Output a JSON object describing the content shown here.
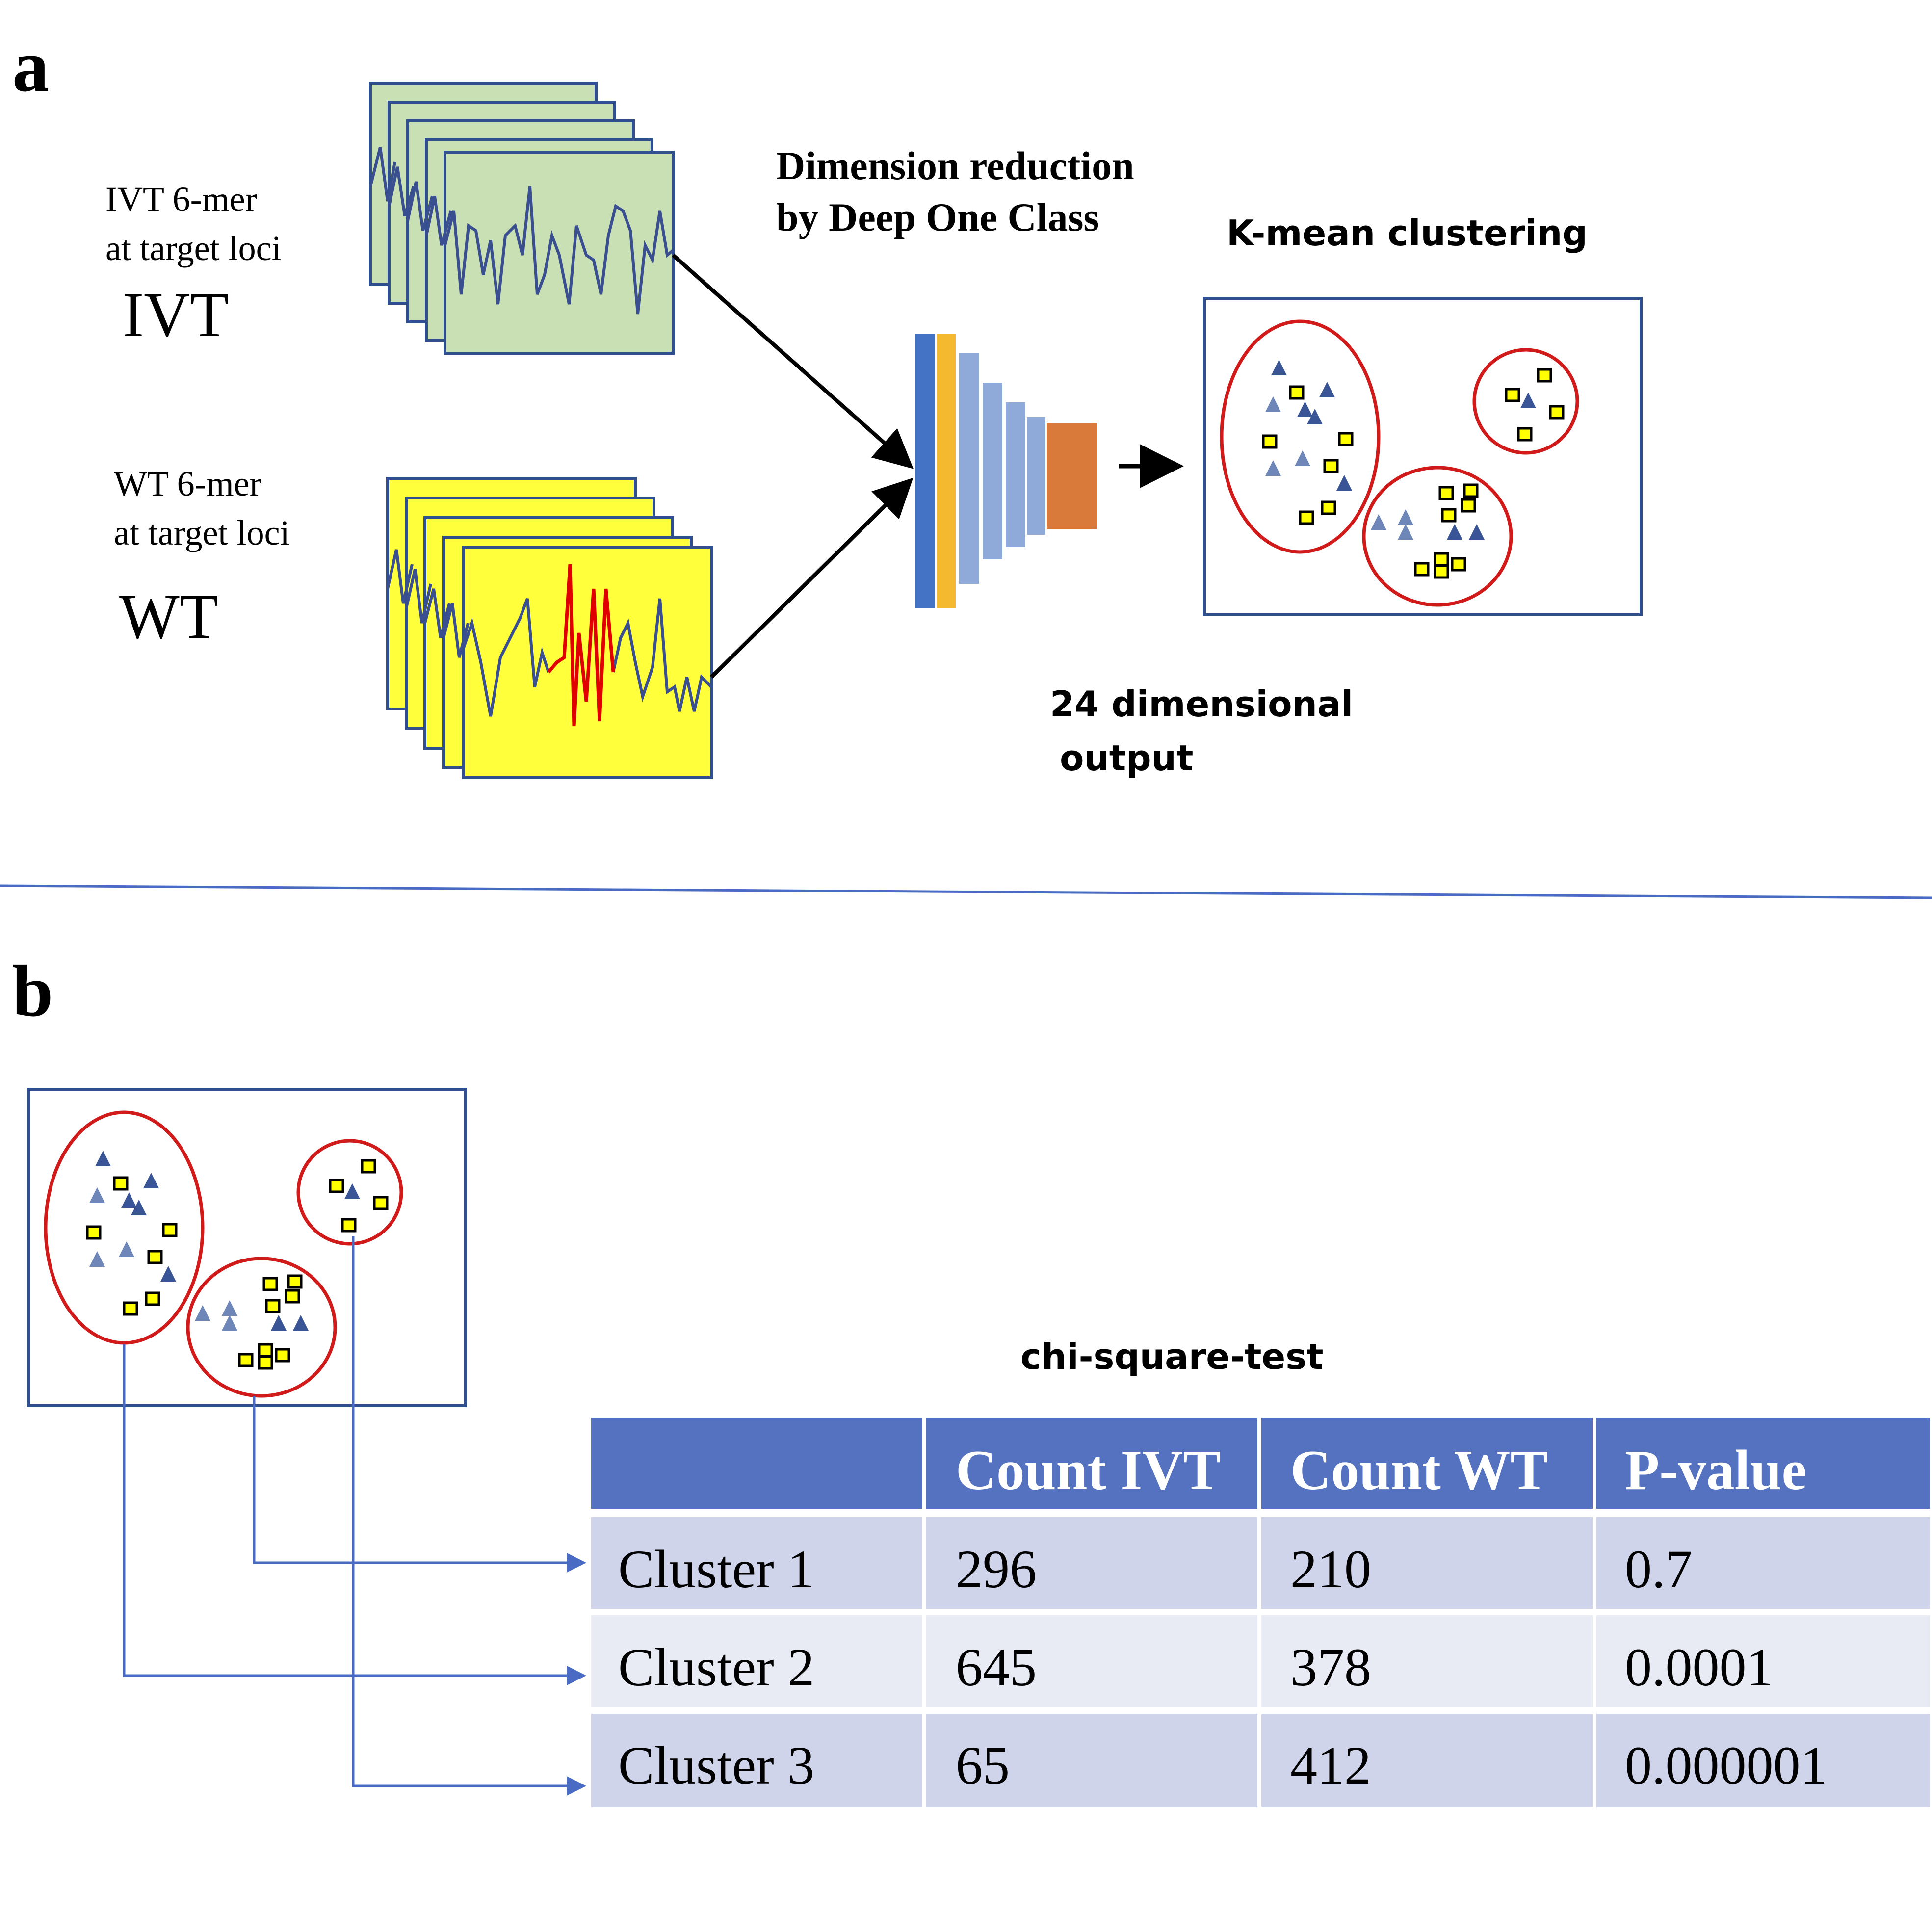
{
  "panel_a": {
    "letter": "a",
    "ivt_label_line1": "IVT 6-mer",
    "ivt_label_line2": "at target loci",
    "ivt_big": "IVT",
    "wt_label_line1": "WT 6-mer",
    "wt_label_line2": "at target loci",
    "wt_big": "WT",
    "dim_reduction_line1": "Dimension reduction",
    "dim_reduction_line2": "by Deep One Class",
    "kmeans_title": "K-mean clustering",
    "output_line1": "24 dimensional",
    "output_line2": "output",
    "colors": {
      "ivt_fill": "#c9e0b4",
      "wt_fill": "#ffff3c",
      "frame_border": "#2f4f8f",
      "signal_line": "#3a4f8f",
      "signal_highlight": "#e00000",
      "layer_blue": "#4472c4",
      "layer_yellow": "#f4b92e",
      "layer_light": "#8fa9d9",
      "layer_orange": "#d97a3a",
      "cluster_ellipse": "#d11a1a",
      "triangle": "#3a5596",
      "square": "#ffff00"
    }
  },
  "panel_b": {
    "letter": "b",
    "table_title": "chi-square-test",
    "table": {
      "headers": [
        "",
        "Count IVT",
        "Count WT",
        "P-value"
      ],
      "rows": [
        [
          "Cluster 1",
          "296",
          "210",
          "0.7"
        ],
        [
          "Cluster 2",
          "645",
          "378",
          "0.0001"
        ],
        [
          "Cluster 3",
          "65",
          "412",
          "0.000001"
        ]
      ]
    },
    "colors": {
      "header_bg": "#5472c0",
      "row_dark": "#cfd4ea",
      "row_light": "#e8eaf4",
      "connector": "#4a6bc4"
    }
  }
}
